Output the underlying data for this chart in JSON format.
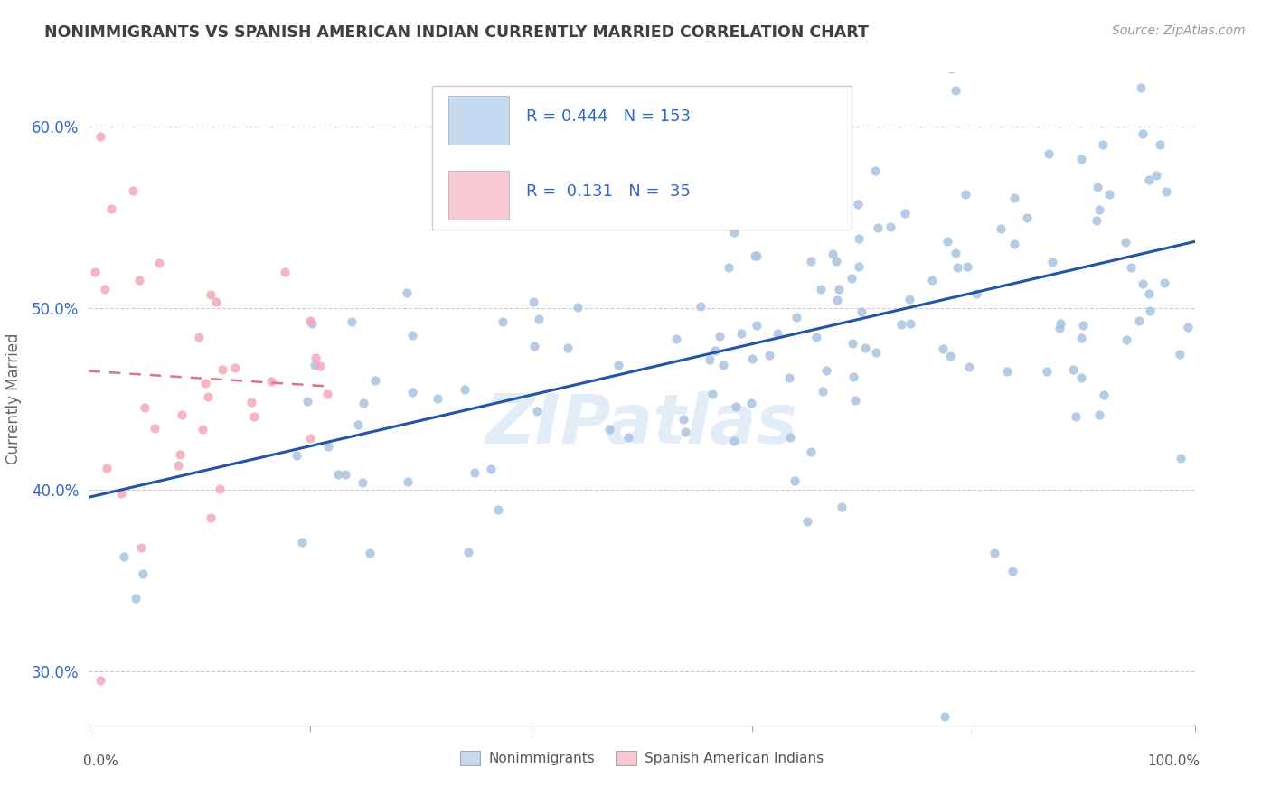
{
  "title": "NONIMMIGRANTS VS SPANISH AMERICAN INDIAN CURRENTLY MARRIED CORRELATION CHART",
  "source": "Source: ZipAtlas.com",
  "ylabel": "Currently Married",
  "y_ticks": [
    0.3,
    0.4,
    0.5,
    0.6
  ],
  "y_tick_labels": [
    "30.0%",
    "40.0%",
    "50.0%",
    "60.0%"
  ],
  "blue_R": "0.444",
  "blue_N": "153",
  "pink_R": "0.131",
  "pink_N": "35",
  "blue_color": "#a8c4e0",
  "pink_color": "#f4a8b8",
  "blue_line_color": "#2255aa",
  "pink_line_color": "#e07090",
  "legend_blue_face": "#c5d9f0",
  "legend_pink_face": "#f8c8d4",
  "title_color": "#404040",
  "stat_color": "#3366cc",
  "watermark": "ZIPatlas",
  "xlim": [
    0.0,
    1.0
  ],
  "ylim": [
    0.27,
    0.63
  ],
  "blue_scatter_seed": 42,
  "pink_scatter_seed": 7
}
